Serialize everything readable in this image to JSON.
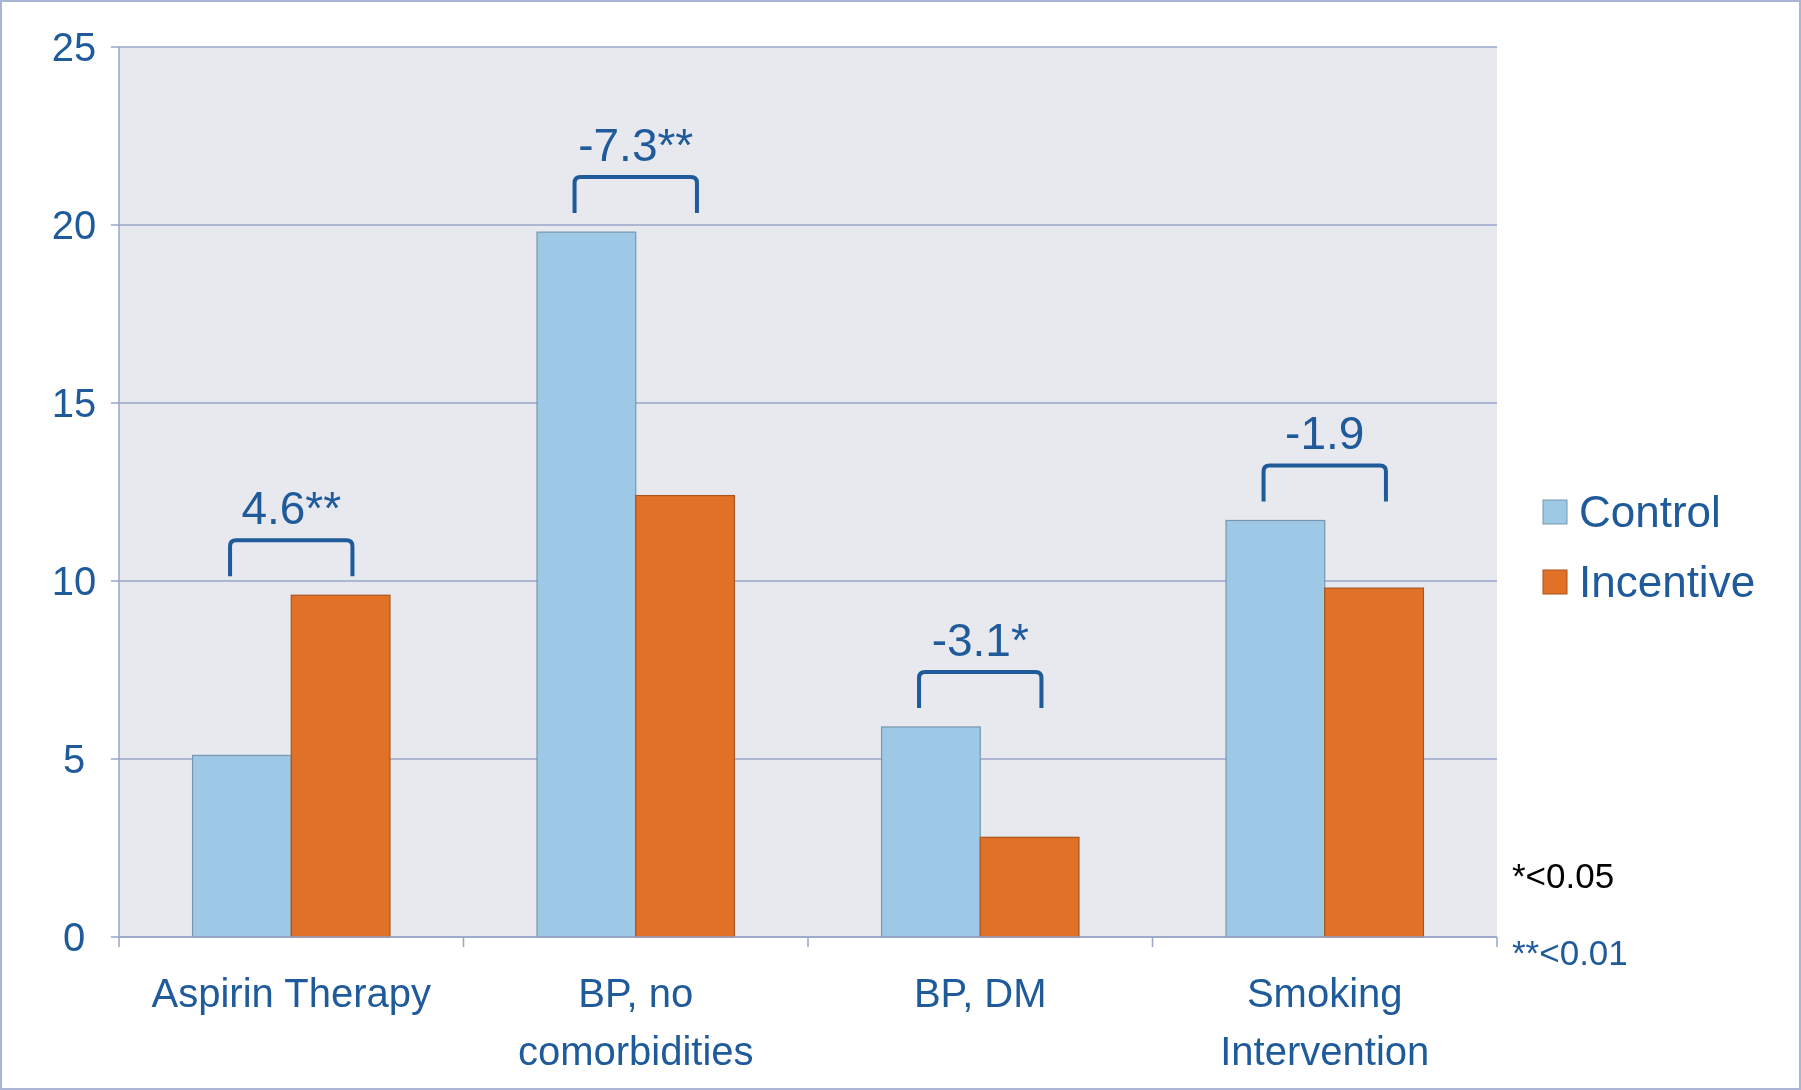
{
  "chart_data": {
    "type": "bar",
    "categories": [
      "Aspirin Therapy",
      "BP, no comorbidities",
      "BP, DM",
      "Smoking Intervention"
    ],
    "series": [
      {
        "name": "Control",
        "color": "#9dc9e6",
        "values": [
          5.1,
          19.8,
          5.9,
          11.7
        ]
      },
      {
        "name": "Incentive",
        "color": "#e07126",
        "values": [
          9.6,
          12.4,
          2.8,
          9.8
        ]
      }
    ],
    "ylim": [
      0,
      25
    ],
    "yticks": [
      0,
      5,
      10,
      15,
      20,
      25
    ],
    "grid": "y",
    "legend": "right",
    "annotations": [
      "4.6**",
      "-7.3**",
      "-3.1*",
      "-1.9",
      "*<0.05",
      "**<0.01"
    ]
  }
}
